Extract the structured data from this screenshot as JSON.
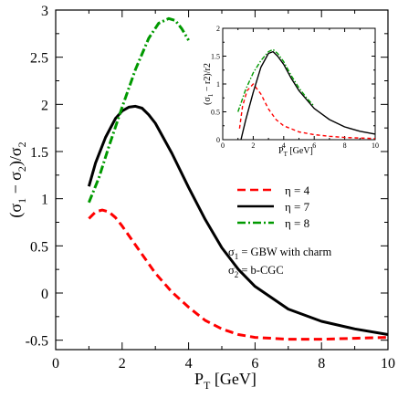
{
  "chart_data": [
    {
      "type": "line",
      "xlabel": "P_T [GeV]",
      "ylabel": "(σ_1 − σ_2)/σ_2",
      "xlim": [
        0,
        10
      ],
      "ylim": [
        -0.6,
        3.0
      ],
      "xticks": [
        "0",
        "2",
        "4",
        "6",
        "8",
        "10"
      ],
      "yticks": [
        "-0.5",
        "0",
        "0.5",
        "1",
        "1.5",
        "2",
        "2.5",
        "3"
      ],
      "series": [
        {
          "name": "η = 4",
          "color": "#ff0000",
          "dash": "dashed",
          "x": [
            1.0,
            1.2,
            1.4,
            1.6,
            1.8,
            2.0,
            2.5,
            3.0,
            3.5,
            4.0,
            4.5,
            5.0,
            5.5,
            6.0,
            6.5,
            7.0,
            8.0,
            9.0,
            10.0
          ],
          "y": [
            0.79,
            0.86,
            0.88,
            0.86,
            0.8,
            0.71,
            0.46,
            0.21,
            0.01,
            -0.15,
            -0.29,
            -0.38,
            -0.44,
            -0.47,
            -0.48,
            -0.49,
            -0.49,
            -0.48,
            -0.47
          ]
        },
        {
          "name": "η = 7",
          "color": "#000000",
          "dash": "solid",
          "x": [
            1.0,
            1.2,
            1.5,
            1.8,
            2.0,
            2.2,
            2.4,
            2.6,
            2.8,
            3.0,
            3.5,
            4.0,
            4.5,
            5.0,
            5.5,
            6.0,
            7.0,
            8.0,
            9.0,
            10.0
          ],
          "y": [
            1.13,
            1.38,
            1.65,
            1.85,
            1.93,
            1.97,
            1.98,
            1.96,
            1.89,
            1.8,
            1.48,
            1.12,
            0.78,
            0.48,
            0.25,
            0.07,
            -0.17,
            -0.3,
            -0.38,
            -0.44
          ]
        },
        {
          "name": "η = 8",
          "color": "#009900",
          "dash": "dashdot",
          "x": [
            1.0,
            1.3,
            1.6,
            2.0,
            2.4,
            2.8,
            3.1,
            3.4,
            3.6,
            3.8,
            4.0
          ],
          "y": [
            0.96,
            1.22,
            1.55,
            1.97,
            2.37,
            2.7,
            2.86,
            2.91,
            2.89,
            2.8,
            2.68
          ]
        }
      ],
      "annotations": [
        "σ_1 = GBW with charm",
        "σ_2 = b-CGC"
      ]
    },
    {
      "type": "line",
      "xlabel": "P_T [GeV]",
      "ylabel": "(σ_1 − r2)/r2",
      "xlim": [
        0,
        10
      ],
      "ylim": [
        0,
        2
      ],
      "xticks": [
        "0",
        "2",
        "4",
        "6",
        "8",
        "10"
      ],
      "yticks": [
        "0",
        "0.5",
        "1",
        "1.5",
        "2"
      ],
      "series": [
        {
          "color": "#ff0000",
          "dash": "dashed",
          "x": [
            1.1,
            1.3,
            1.6,
            2.0,
            2.5,
            3.0,
            3.5,
            4.0,
            5.0,
            6.0,
            7.0,
            8.0,
            10.0
          ],
          "y": [
            0.2,
            0.6,
            0.88,
            1.0,
            0.82,
            0.55,
            0.36,
            0.25,
            0.14,
            0.09,
            0.06,
            0.04,
            0.02
          ]
        },
        {
          "color": "#000000",
          "dash": "solid",
          "x": [
            1.2,
            1.5,
            2.0,
            2.5,
            3.0,
            3.3,
            3.6,
            4.0,
            4.5,
            5.0,
            6.0,
            7.0,
            8.0,
            9.0,
            10.0
          ],
          "y": [
            0.0,
            0.35,
            0.85,
            1.3,
            1.55,
            1.58,
            1.5,
            1.35,
            1.1,
            0.88,
            0.56,
            0.36,
            0.23,
            0.15,
            0.1
          ]
        },
        {
          "color": "#009900",
          "dash": "dashdot",
          "x": [
            1.0,
            1.5,
            2.0,
            2.5,
            3.0,
            3.3,
            3.6,
            4.0,
            4.5,
            5.0,
            5.5,
            6.0
          ],
          "y": [
            0.5,
            0.9,
            1.2,
            1.42,
            1.58,
            1.62,
            1.55,
            1.4,
            1.15,
            0.93,
            0.75,
            0.6
          ]
        }
      ]
    }
  ]
}
